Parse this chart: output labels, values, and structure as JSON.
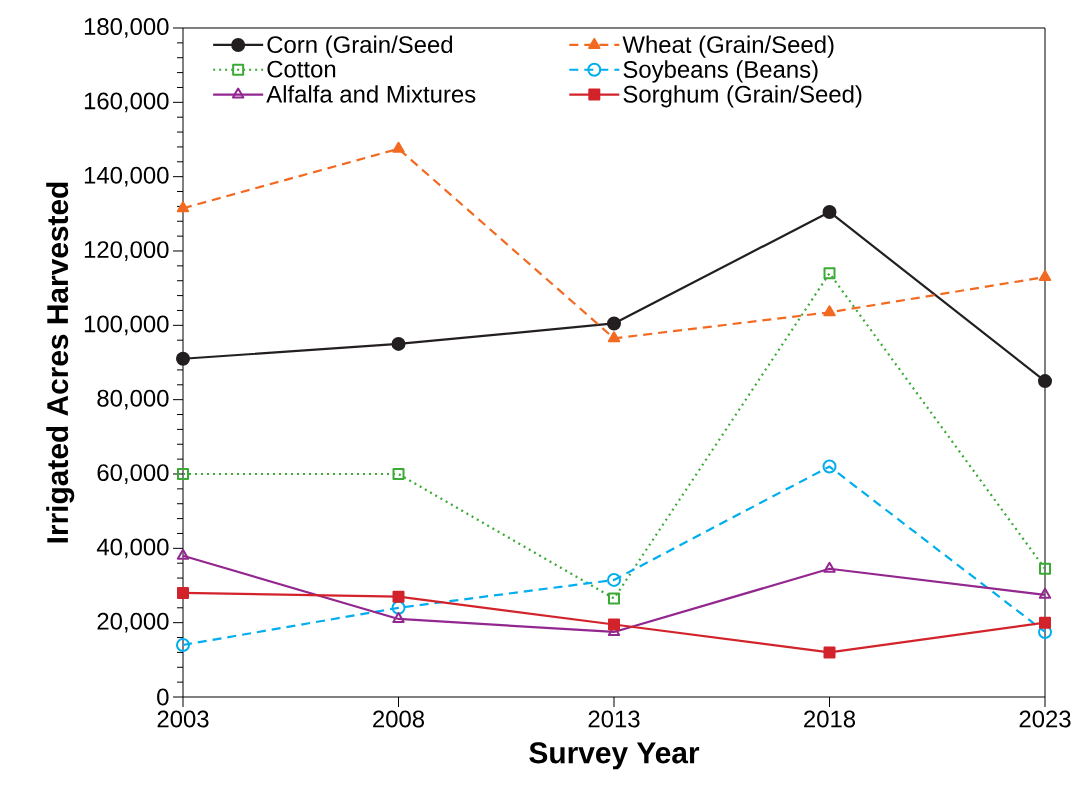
{
  "chart_data": {
    "type": "line",
    "xlabel": "Survey Year",
    "ylabel": "Irrigated Acres Harvested",
    "x": [
      2003,
      2008,
      2013,
      2018,
      2023
    ],
    "series": [
      {
        "name": "Corn (Grain/Seed",
        "color": "#231f20",
        "marker": "circle",
        "line_style": "solid",
        "values": [
          91000,
          95000,
          100500,
          130500,
          85000
        ]
      },
      {
        "name": "Wheat (Grain/Seed)",
        "color": "#f26a21",
        "marker": "triangle",
        "line_style": "dashed",
        "values": [
          131500,
          147500,
          96500,
          103500,
          113000
        ]
      },
      {
        "name": "Cotton",
        "color": "#3aaa35",
        "marker": "square",
        "line_style": "dotted",
        "values": [
          60000,
          60000,
          26500,
          114000,
          34500
        ]
      },
      {
        "name": "Soybeans (Beans)",
        "color": "#00aeef",
        "marker": "circle",
        "line_style": "dashed",
        "values": [
          14000,
          24000,
          31500,
          62000,
          17500
        ]
      },
      {
        "name": "Alfalfa and Mixtures",
        "color": "#92278f",
        "marker": "triangle",
        "line_style": "solid",
        "values": [
          38000,
          21000,
          17500,
          34500,
          27500
        ]
      },
      {
        "name": "Sorghum (Grain/Seed)",
        "color": "#d2232a",
        "marker": "square",
        "line_style": "solid",
        "values": [
          28000,
          27000,
          19500,
          12000,
          20000
        ]
      }
    ],
    "xlim": [
      2003,
      2023
    ],
    "xticks": [
      2003,
      2008,
      2013,
      2018,
      2023
    ],
    "ylim": [
      0,
      180000
    ],
    "yticks": [
      {
        "value": 0,
        "label": "0"
      },
      {
        "value": 20000,
        "label": "20,000"
      },
      {
        "value": 40000,
        "label": "40,000"
      },
      {
        "value": 60000,
        "label": "60,000"
      },
      {
        "value": 80000,
        "label": "80,000"
      },
      {
        "value": 100000,
        "label": "100,000"
      },
      {
        "value": 120000,
        "label": "120,000"
      },
      {
        "value": 140000,
        "label": "140,000"
      },
      {
        "value": 160000,
        "label": "160,000"
      },
      {
        "value": 180000,
        "label": "180,000"
      }
    ],
    "grid": false,
    "legend": "top"
  }
}
